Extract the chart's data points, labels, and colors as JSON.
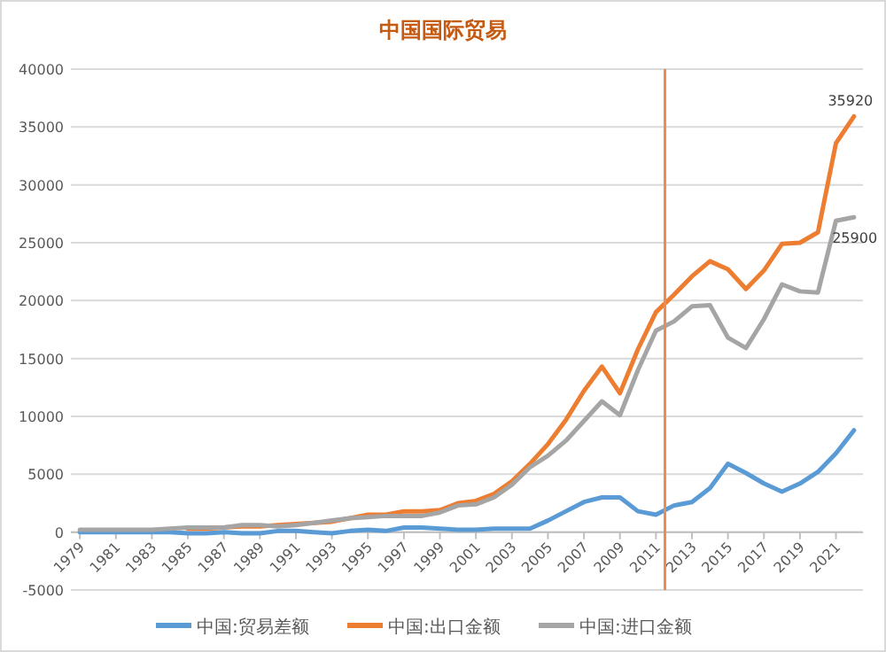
{
  "chart_data": {
    "type": "line",
    "title": "中国国际贸易",
    "x": [
      1979,
      1980,
      1981,
      1982,
      1983,
      1984,
      1985,
      1986,
      1987,
      1988,
      1989,
      1990,
      1991,
      1992,
      1993,
      1994,
      1995,
      1996,
      1997,
      1998,
      1999,
      2000,
      2001,
      2002,
      2003,
      2004,
      2005,
      2006,
      2007,
      2008,
      2009,
      2010,
      2011,
      2012,
      2013,
      2014,
      2015,
      2016,
      2017,
      2018,
      2019,
      2020,
      2021,
      2022
    ],
    "xlim": [
      1978.5,
      2022.5
    ],
    "xticks": [
      1979,
      1981,
      1983,
      1985,
      1987,
      1989,
      1991,
      1993,
      1995,
      1997,
      1999,
      2001,
      2003,
      2005,
      2007,
      2009,
      2011,
      2013,
      2015,
      2017,
      2019,
      2021
    ],
    "ylim": [
      -5000,
      40000
    ],
    "yticks": [
      -5000,
      0,
      5000,
      10000,
      15000,
      20000,
      25000,
      30000,
      35000,
      40000
    ],
    "grid": "y",
    "legend": "bottom",
    "series": [
      {
        "name": "中国:贸易差额",
        "color": "#5b9bd5",
        "values": [
          0,
          0,
          0,
          0,
          0,
          0,
          -100,
          -100,
          0,
          -100,
          -100,
          100,
          100,
          0,
          -100,
          100,
          200,
          100,
          400,
          400,
          300,
          200,
          200,
          300,
          300,
          300,
          1000,
          1800,
          2600,
          3000,
          3000,
          1800,
          1500,
          2300,
          2600,
          3800,
          5900,
          5100,
          4200,
          3500,
          4200,
          5200,
          6800,
          8800
        ]
      },
      {
        "name": "中国:出口金额",
        "color": "#ed7d31",
        "values": [
          null,
          null,
          null,
          null,
          null,
          null,
          300,
          300,
          400,
          500,
          500,
          600,
          700,
          800,
          900,
          1200,
          1500,
          1500,
          1800,
          1800,
          1900,
          2500,
          2700,
          3300,
          4400,
          5900,
          7600,
          9700,
          12200,
          14300,
          12000,
          15800,
          19000,
          20500,
          22100,
          23400,
          22700,
          21000,
          22600,
          24900,
          25000,
          25900,
          33600,
          35920
        ],
        "value_labels": [
          null,
          null,
          null,
          null,
          null,
          null,
          null,
          null,
          null,
          null,
          null,
          null,
          null,
          null,
          null,
          null,
          null,
          null,
          null,
          null,
          null,
          null,
          null,
          null,
          null,
          null,
          null,
          null,
          null,
          null,
          null,
          null,
          null,
          null,
          null,
          null,
          null,
          null,
          null,
          null,
          null,
          "25900",
          null,
          "35920"
        ]
      },
      {
        "name": "中国:进口金额",
        "color": "#a5a5a5",
        "values": [
          200,
          200,
          200,
          200,
          200,
          300,
          400,
          400,
          400,
          600,
          600,
          500,
          600,
          800,
          1000,
          1200,
          1300,
          1400,
          1400,
          1400,
          1700,
          2300,
          2400,
          3000,
          4100,
          5600,
          6600,
          7900,
          9600,
          11300,
          10100,
          14000,
          17400,
          18200,
          19500,
          19600,
          16800,
          15900,
          18400,
          21400,
          20800,
          20700,
          26900,
          27200
        ]
      }
    ],
    "ref_lines": [
      {
        "axis": "x",
        "value": 2011.5,
        "color": "#eb8c55"
      }
    ]
  }
}
